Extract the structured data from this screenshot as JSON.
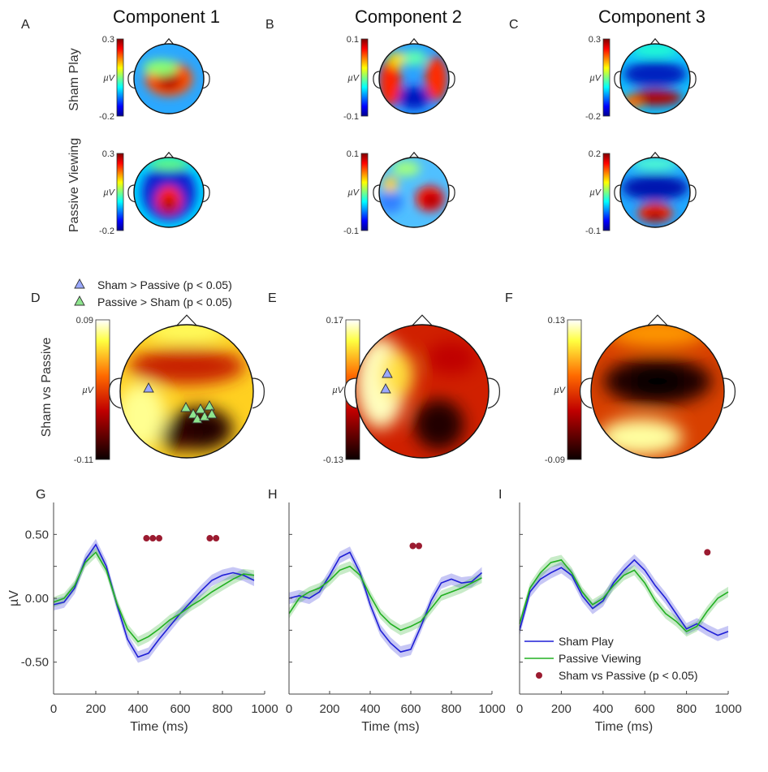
{
  "columns": [
    {
      "letter_top": "A",
      "title": "Component 1",
      "letter_mid": "D",
      "letter_bot": "G"
    },
    {
      "letter_top": "B",
      "title": "Component 2",
      "letter_mid": "E",
      "letter_bot": "H"
    },
    {
      "letter_top": "C",
      "title": "Component 3",
      "letter_mid": "F",
      "letter_bot": "I"
    }
  ],
  "row_labels": {
    "sham": "Sham Play",
    "passive": "Passive Viewing",
    "diff": "Sham vs Passive"
  },
  "unit": "µV",
  "topo_scales": {
    "sham": [
      [
        "0.3",
        "-0.2"
      ],
      [
        "0.1",
        "-0.1"
      ],
      [
        "0.3",
        "-0.2"
      ]
    ],
    "passive": [
      [
        "0.3",
        "-0.2"
      ],
      [
        "0.1",
        "-0.1"
      ],
      [
        "0.2",
        "-0.1"
      ]
    ],
    "diff": [
      [
        "0.09",
        "-0.11"
      ],
      [
        "0.17",
        "-0.13"
      ],
      [
        "0.13",
        "-0.09"
      ]
    ]
  },
  "topo_legend": {
    "sham_gt": "Sham > Passive (p < 0.05)",
    "passive_gt": "Passive > Sham (p < 0.05)"
  },
  "colors": {
    "sham": "#1f1fd6",
    "passive": "#22b022",
    "sig": "#9b1b30"
  },
  "chart_data": [
    {
      "type": "line",
      "xlabel": "Time (ms)",
      "ylabel": "µV",
      "xlim": [
        0,
        1000
      ],
      "ylim": [
        -0.75,
        0.75
      ],
      "xticks": [
        "0",
        "200",
        "400",
        "600",
        "800",
        "1000"
      ],
      "yticks": [
        "0.50",
        "0.00",
        "-0.50"
      ],
      "x": [
        0,
        50,
        100,
        150,
        200,
        250,
        300,
        350,
        400,
        450,
        500,
        550,
        600,
        650,
        700,
        750,
        800,
        850,
        900,
        950
      ],
      "series": [
        {
          "name": "Sham Play",
          "values": [
            -0.05,
            -0.03,
            0.08,
            0.3,
            0.42,
            0.25,
            -0.05,
            -0.32,
            -0.46,
            -0.43,
            -0.32,
            -0.22,
            -0.12,
            -0.03,
            0.06,
            0.14,
            0.18,
            0.2,
            0.18,
            0.14
          ]
        },
        {
          "name": "Passive Viewing",
          "values": [
            -0.03,
            0.0,
            0.1,
            0.28,
            0.36,
            0.22,
            -0.04,
            -0.24,
            -0.34,
            -0.3,
            -0.24,
            -0.17,
            -0.12,
            -0.06,
            -0.01,
            0.05,
            0.1,
            0.15,
            0.19,
            0.18
          ]
        }
      ],
      "sig_x": [
        440,
        470,
        500,
        740,
        770
      ],
      "sig_y": 0.47
    },
    {
      "type": "line",
      "xlabel": "Time (ms)",
      "ylabel": "",
      "xlim": [
        0,
        1000
      ],
      "ylim": [
        -0.75,
        0.75
      ],
      "xticks": [
        "0",
        "200",
        "400",
        "600",
        "800",
        "1000"
      ],
      "yticks": [],
      "x": [
        0,
        50,
        100,
        150,
        200,
        250,
        300,
        350,
        400,
        450,
        500,
        550,
        600,
        650,
        700,
        750,
        800,
        850,
        900,
        950
      ],
      "series": [
        {
          "name": "Sham Play",
          "values": [
            0.0,
            0.02,
            0.0,
            0.05,
            0.18,
            0.32,
            0.36,
            0.2,
            -0.05,
            -0.25,
            -0.35,
            -0.42,
            -0.4,
            -0.22,
            -0.02,
            0.12,
            0.15,
            0.12,
            0.13,
            0.2
          ]
        },
        {
          "name": "Passive Viewing",
          "values": [
            -0.12,
            0.0,
            0.05,
            0.08,
            0.14,
            0.22,
            0.25,
            0.18,
            0.02,
            -0.12,
            -0.2,
            -0.25,
            -0.22,
            -0.18,
            -0.08,
            0.02,
            0.05,
            0.08,
            0.12,
            0.16
          ]
        }
      ],
      "sig_x": [
        610,
        640
      ],
      "sig_y": 0.41
    },
    {
      "type": "line",
      "xlabel": "Time (ms)",
      "ylabel": "",
      "xlim": [
        0,
        1000
      ],
      "ylim": [
        -0.75,
        0.75
      ],
      "xticks": [
        "0",
        "200",
        "400",
        "600",
        "800",
        "1000"
      ],
      "yticks": [],
      "x": [
        0,
        50,
        100,
        150,
        200,
        250,
        300,
        350,
        400,
        450,
        500,
        550,
        600,
        650,
        700,
        750,
        800,
        850,
        900,
        950,
        1000
      ],
      "series": [
        {
          "name": "Sham Play",
          "values": [
            -0.25,
            0.05,
            0.15,
            0.2,
            0.24,
            0.18,
            0.02,
            -0.08,
            -0.02,
            0.12,
            0.22,
            0.3,
            0.22,
            0.1,
            0.0,
            -0.12,
            -0.24,
            -0.2,
            -0.25,
            -0.29,
            -0.26
          ]
        },
        {
          "name": "Passive Viewing",
          "values": [
            -0.2,
            0.08,
            0.2,
            0.28,
            0.3,
            0.2,
            0.05,
            -0.05,
            0.0,
            0.1,
            0.18,
            0.22,
            0.12,
            -0.02,
            -0.12,
            -0.18,
            -0.26,
            -0.22,
            -0.1,
            0.0,
            0.05
          ]
        }
      ],
      "sig_x": [
        900
      ],
      "sig_y": 0.36,
      "legend": [
        "Sham Play",
        "Passive Viewing",
        "Sham vs Passive (p < 0.05)"
      ]
    }
  ]
}
